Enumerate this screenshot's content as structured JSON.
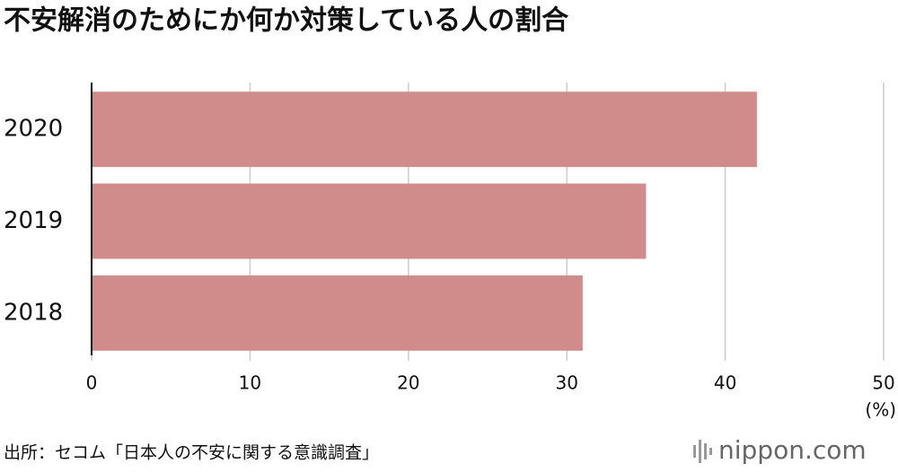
{
  "chart_data": {
    "type": "barh",
    "title": "不安解消のためにか何か対策している人の割合",
    "categories": [
      "2020",
      "2019",
      "2018"
    ],
    "values": [
      42,
      35,
      31
    ],
    "color": "#cf8c8a",
    "xlim": [
      0,
      50
    ],
    "xticks": [
      0,
      10,
      20,
      30,
      40,
      50
    ],
    "xlabel": "(%)",
    "grid": true,
    "source": "出所：セコム「日本人の不安に関する意識調査」",
    "logo": "nippon.com"
  }
}
